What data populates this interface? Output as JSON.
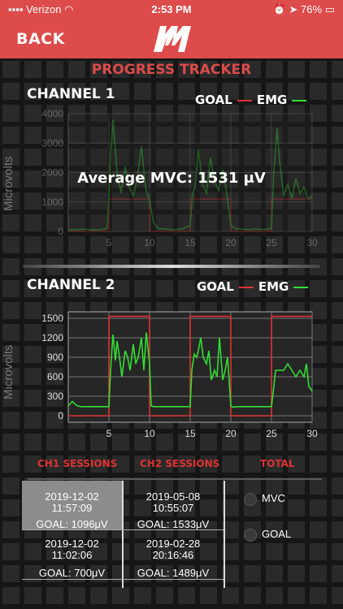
{
  "status": {
    "carrier": "Verizon",
    "time": "2:53 PM",
    "battery": "76%"
  },
  "nav": {
    "back_label": "BACK"
  },
  "page_title": "PROGRESS TRACKER",
  "colors": {
    "goal": "#dd3333",
    "emg": "#33dd33",
    "accent": "#dd4b4b"
  },
  "channel1": {
    "title": "CHANNEL 1",
    "legend_goal": "GOAL",
    "legend_emg": "EMG",
    "ylabel": "Microvolts",
    "average_text": "Average MVC: 1531 μV"
  },
  "channel2": {
    "title": "CHANNEL 2",
    "legend_goal": "GOAL",
    "legend_emg": "EMG",
    "ylabel": "Microvolts"
  },
  "chart_data": [
    {
      "type": "line",
      "title": "CHANNEL 1",
      "ylabel": "Microvolts",
      "xlim": [
        0,
        30
      ],
      "ylim": [
        0,
        4000
      ],
      "yticks": [
        0,
        1000,
        2000,
        3000,
        4000
      ],
      "xticks": [
        5,
        10,
        15,
        20,
        25,
        30
      ],
      "series": [
        {
          "name": "GOAL",
          "x": [
            0,
            5,
            5,
            10,
            10,
            15,
            15,
            20,
            20,
            25,
            25,
            30
          ],
          "y": [
            0,
            0,
            1100,
            1100,
            0,
            0,
            1100,
            1100,
            0,
            0,
            1100,
            1100
          ]
        },
        {
          "name": "EMG",
          "x": [
            0,
            1,
            2,
            3,
            4,
            4.8,
            5.2,
            5.5,
            6,
            6.5,
            7,
            7.5,
            8,
            8.5,
            9,
            9.5,
            10,
            10.5,
            11,
            12,
            13,
            14,
            15,
            15.3,
            15.6,
            16,
            16.5,
            17,
            17.5,
            18,
            18.5,
            19,
            19.5,
            20,
            20.5,
            21,
            22,
            23,
            24,
            25,
            25.3,
            25.7,
            26,
            26.5,
            27,
            27.5,
            28,
            28.5,
            29,
            29.5,
            30
          ],
          "y": [
            50,
            60,
            80,
            50,
            60,
            100,
            2500,
            3800,
            2000,
            1300,
            2200,
            1500,
            1200,
            1800,
            2900,
            1500,
            1000,
            300,
            100,
            80,
            60,
            80,
            200,
            1300,
            1500,
            2800,
            1600,
            1300,
            2500,
            1700,
            1400,
            2100,
            1300,
            200,
            100,
            80,
            60,
            80,
            60,
            100,
            2100,
            3500,
            2400,
            1200,
            1600,
            1100,
            1800,
            1300,
            1500,
            1100,
            1200
          ]
        }
      ]
    },
    {
      "type": "line",
      "title": "CHANNEL 2",
      "ylabel": "Microvolts",
      "xlim": [
        0,
        30
      ],
      "ylim": [
        -100,
        1600
      ],
      "yticks": [
        0,
        300,
        600,
        900,
        1200,
        1500
      ],
      "xticks": [
        5,
        10,
        15,
        20,
        25,
        30
      ],
      "series": [
        {
          "name": "GOAL",
          "x": [
            0,
            5,
            5,
            10,
            10,
            15,
            15,
            20,
            20,
            25,
            25,
            30
          ],
          "y": [
            0,
            0,
            1530,
            1530,
            0,
            0,
            1530,
            1530,
            0,
            0,
            1530,
            1530
          ]
        },
        {
          "name": "EMG",
          "x": [
            0,
            0.5,
            1,
            1.5,
            2,
            2.5,
            3,
            3.5,
            4,
            4.5,
            5,
            5.2,
            5.5,
            5.8,
            6,
            6.3,
            6.6,
            7,
            7.3,
            7.6,
            8,
            8.3,
            8.6,
            9,
            9.3,
            9.6,
            10,
            10.2,
            10.5,
            11,
            11.5,
            12,
            12.5,
            13,
            13.5,
            14,
            14.5,
            15,
            15.2,
            15.5,
            15.8,
            16,
            16.3,
            16.6,
            17,
            17.3,
            17.6,
            18,
            18.3,
            18.6,
            19,
            19.3,
            19.6,
            20,
            20.3,
            20.6,
            21,
            21.5,
            22,
            22.5,
            23,
            23.5,
            24,
            24.5,
            25,
            25.2,
            25.5,
            26,
            26.5,
            27,
            27.5,
            28,
            28.5,
            29,
            29.3,
            29.6,
            30
          ],
          "y": [
            150,
            220,
            160,
            140,
            140,
            140,
            140,
            140,
            140,
            140,
            140,
            700,
            1250,
            850,
            1150,
            900,
            600,
            1000,
            900,
            700,
            1100,
            800,
            900,
            1200,
            700,
            1280,
            800,
            150,
            140,
            140,
            140,
            140,
            140,
            140,
            140,
            140,
            140,
            140,
            700,
            950,
            900,
            1000,
            1200,
            900,
            800,
            1000,
            550,
            700,
            600,
            1200,
            550,
            700,
            900,
            150,
            130,
            140,
            140,
            140,
            140,
            140,
            140,
            140,
            140,
            140,
            140,
            350,
            700,
            700,
            700,
            800,
            700,
            600,
            700,
            600,
            800,
            450,
            380
          ]
        }
      ]
    }
  ],
  "sessions": {
    "ch1_label": "CH1 SESSIONS",
    "ch2_label": "CH2 SESSIONS",
    "total_label": "TOTAL",
    "ch1": [
      {
        "date": "2019-12-02",
        "time": "11:57:09",
        "goal": "GOAL: 1096μV"
      },
      {
        "date": "2019-12-02",
        "time": "11:02:06",
        "goal": "GOAL: 700μV"
      }
    ],
    "ch2": [
      {
        "date": "2019-05-08",
        "time": "10:55:07",
        "goal": "GOAL: 1533μV"
      },
      {
        "date": "2019-02-28",
        "time": "20:16:46",
        "goal": "GOAL: 1489μV"
      }
    ],
    "total_options": [
      "MVC",
      "GOAL"
    ]
  }
}
